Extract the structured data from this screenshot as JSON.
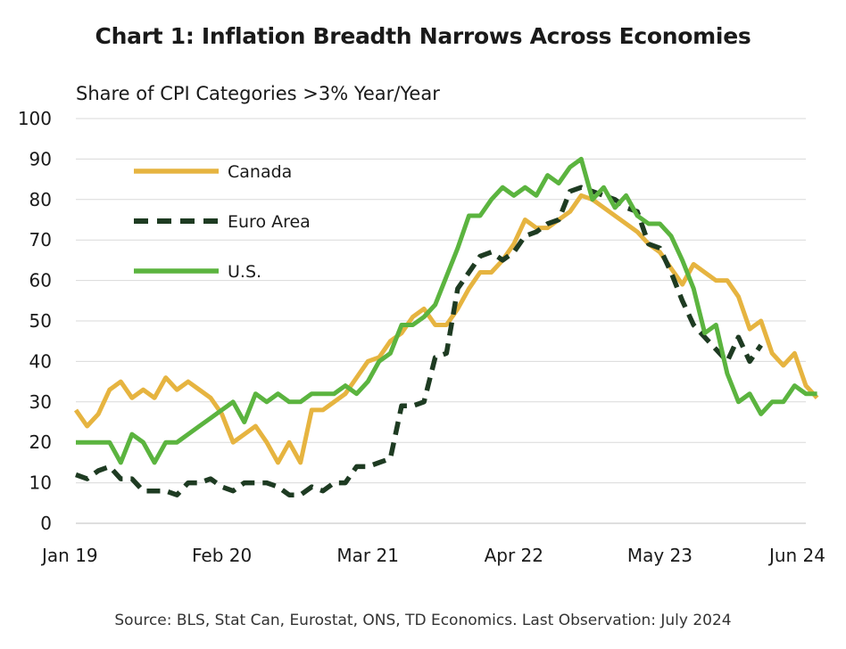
{
  "chart_data": {
    "type": "line",
    "title": "Chart 1: Inflation Breadth Narrows Across Economies",
    "ylabel": "Share of CPI Categories >3% Year/Year",
    "source": "Source: BLS, Stat Can, Eurostat, ONS, TD Economics. Last Observation: July 2024",
    "ylim": [
      0,
      100
    ],
    "yticks": [
      "0",
      "10",
      "20",
      "30",
      "40",
      "50",
      "60",
      "70",
      "80",
      "90",
      "100"
    ],
    "xticks": [
      {
        "label": "Jan 19",
        "month": "2019-01"
      },
      {
        "label": "Feb 20",
        "month": "2020-02"
      },
      {
        "label": "Mar 21",
        "month": "2021-03"
      },
      {
        "label": "Apr 22",
        "month": "2022-04"
      },
      {
        "label": "May 23",
        "month": "2023-05"
      },
      {
        "label": "Jun 24",
        "month": "2024-06"
      }
    ],
    "x_start": "2019-01",
    "grid": true,
    "legend": "top-left",
    "series": [
      {
        "name": "Canada",
        "color": "#E6B440",
        "dash": "solid",
        "values": [
          28,
          24,
          27,
          33,
          35,
          31,
          33,
          31,
          36,
          33,
          35,
          33,
          31,
          27,
          20,
          22,
          24,
          20,
          15,
          20,
          15,
          28,
          28,
          30,
          32,
          36,
          40,
          41,
          45,
          47,
          51,
          53,
          49,
          49,
          53,
          58,
          62,
          62,
          65,
          69,
          75,
          73,
          73,
          75,
          77,
          81,
          80,
          78,
          76,
          74,
          72,
          69,
          67,
          63,
          59,
          64,
          62,
          60,
          60,
          56,
          48,
          50,
          42,
          39,
          42,
          34,
          31
        ]
      },
      {
        "name": "Euro Area",
        "color": "#1E3B22",
        "dash": "dashed",
        "values": [
          12,
          11,
          13,
          14,
          11,
          11,
          8,
          8,
          8,
          7,
          10,
          10,
          11,
          9,
          8,
          10,
          10,
          10,
          9,
          7,
          7,
          9,
          8,
          10,
          10,
          14,
          14,
          15,
          16,
          29,
          29,
          30,
          41,
          42,
          58,
          62,
          66,
          67,
          65,
          67,
          71,
          72,
          74,
          75,
          82,
          83,
          82,
          81,
          80,
          78,
          77,
          69,
          68,
          62,
          55,
          49,
          46,
          43,
          40,
          46,
          40,
          44
        ]
      },
      {
        "name": "U.S.",
        "color": "#5BB43F",
        "dash": "solid",
        "values": [
          20,
          20,
          20,
          20,
          15,
          22,
          20,
          15,
          20,
          20,
          22,
          24,
          26,
          28,
          30,
          25,
          32,
          30,
          32,
          30,
          30,
          32,
          32,
          32,
          34,
          32,
          35,
          40,
          42,
          49,
          49,
          51,
          54,
          61,
          68,
          76,
          76,
          80,
          83,
          81,
          83,
          81,
          86,
          84,
          88,
          90,
          80,
          83,
          78,
          81,
          76,
          74,
          74,
          71,
          65,
          58,
          47,
          49,
          37,
          30,
          32,
          27,
          30,
          30,
          34,
          32,
          32
        ]
      }
    ]
  }
}
